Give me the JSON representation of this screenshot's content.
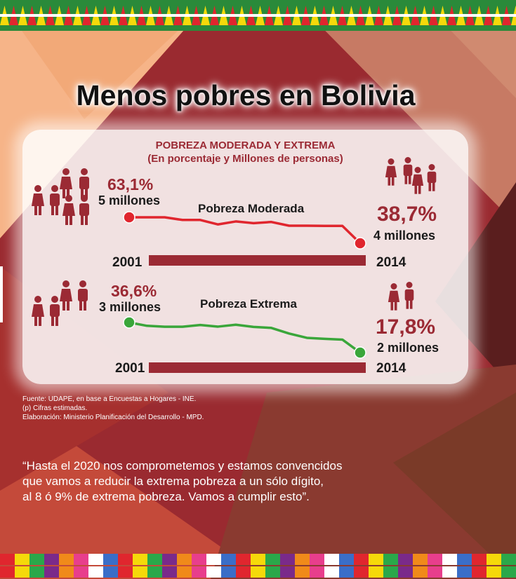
{
  "title": "Menos pobres en Bolivia",
  "panel": {
    "title": "POBREZA MODERADA Y EXTREMA",
    "subtitle": "(En porcentaje y Millones de personas)"
  },
  "colors": {
    "moderada_line": "#e0262e",
    "extrema_line": "#3aa63a",
    "accent": "#9b2a34"
  },
  "chart_data": [
    {
      "type": "line",
      "title": "Pobreza Moderada",
      "x_start_label": "2001",
      "x_end_label": "2014",
      "start_pct": "63,1%",
      "start_people": "5 millones",
      "end_pct": "38,7%",
      "end_people": "4 millones",
      "values": [
        63.1,
        63.1,
        63.1,
        60.6,
        60.6,
        56.4,
        59.2,
        57.6,
        58.7,
        55.2,
        55.2,
        55.0,
        55.0,
        38.7
      ]
    },
    {
      "type": "line",
      "title": "Pobreza Extrema",
      "x_start_label": "2001",
      "x_end_label": "2014",
      "start_pct": "36,6%",
      "start_people": "3 millones",
      "end_pct": "17,8%",
      "end_people": "2 millones",
      "values": [
        36.6,
        34.5,
        33.9,
        33.9,
        35.0,
        34.0,
        35.2,
        33.8,
        33.2,
        29.7,
        27.0,
        26.4,
        25.9,
        17.8
      ]
    }
  ],
  "source": {
    "line1": "Fuente: UDAPE, en base a Encuestas a Hogares - INE.",
    "line2": "(p) Cifras estimadas.",
    "line3": "Elaboración: Ministerio Planificación del Desarrollo - MPD."
  },
  "quote": {
    "line1": "“Hasta el 2020 nos comprometemos y estamos convencidos",
    "line2": "que vamos a reducir la extrema pobreza a un sólo dígito,",
    "line3": "al 8 ó 9% de extrema pobreza. Vamos a cumplir esto”."
  }
}
